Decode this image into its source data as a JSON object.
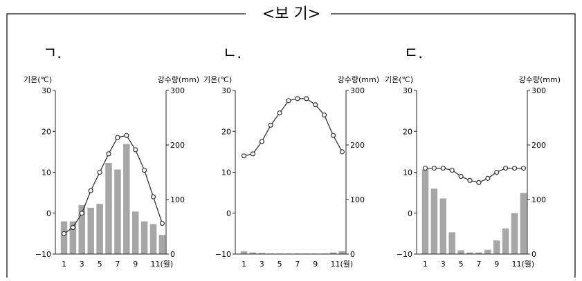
{
  "box_title": "<보 기>",
  "colors": {
    "bar": "#a6a6a6",
    "line": "#333333",
    "axis": "#222222",
    "frame": "#111111"
  },
  "chart_data": [
    {
      "label": "ㄱ.",
      "type": "bar+line",
      "ylabel_left": "기온(℃)",
      "ylabel_right": "강수량(mm)",
      "ylim_left": [
        -10,
        30
      ],
      "ylim_right": [
        0,
        300
      ],
      "yticks_left": [
        "30",
        "20",
        "10",
        "0",
        "−10"
      ],
      "yticks_right": [
        "300",
        "200",
        "100",
        "0"
      ],
      "months": [
        1,
        2,
        3,
        4,
        5,
        6,
        7,
        8,
        9,
        10,
        11,
        12
      ],
      "xtick_labels": [
        "1",
        "3",
        "5",
        "7",
        "9",
        "11(월)"
      ],
      "temperature": [
        -5,
        -3.5,
        0,
        5.5,
        10,
        14.5,
        18.5,
        19,
        15.5,
        10.5,
        4,
        -2.5
      ],
      "precipitation": [
        60,
        60,
        90,
        85,
        92,
        167,
        155,
        202,
        78,
        60,
        55,
        35
      ]
    },
    {
      "label": "ㄴ.",
      "type": "bar+line",
      "ylabel_left": "기온(℃)",
      "ylabel_right": "강수량(mm)",
      "ylim_left": [
        -10,
        30
      ],
      "ylim_right": [
        0,
        300
      ],
      "yticks_left": [
        "30",
        "20",
        "10",
        "0",
        "−10"
      ],
      "yticks_right": [
        "300",
        "200",
        "100",
        "0"
      ],
      "months": [
        1,
        2,
        3,
        4,
        5,
        6,
        7,
        8,
        9,
        10,
        11,
        12
      ],
      "xtick_labels": [
        "1",
        "3",
        "5",
        "7",
        "9",
        "11(월)"
      ],
      "temperature": [
        14,
        14.5,
        17.5,
        21.5,
        24.5,
        27.5,
        28,
        28,
        26.5,
        24,
        19,
        15
      ],
      "precipitation": [
        5,
        3,
        2,
        1,
        1,
        1,
        1,
        1,
        1,
        1,
        3,
        5
      ]
    },
    {
      "label": "ㄷ.",
      "type": "bar+line",
      "ylabel_left": "기온(℃)",
      "ylabel_right": "강수량(mm)",
      "ylim_left": [
        -10,
        30
      ],
      "ylim_right": [
        0,
        300
      ],
      "yticks_left": [
        "30",
        "20",
        "10",
        "0",
        "−10"
      ],
      "yticks_right": [
        "300",
        "200",
        "100",
        "0"
      ],
      "months": [
        1,
        2,
        3,
        4,
        5,
        6,
        7,
        8,
        9,
        10,
        11,
        12
      ],
      "xtick_labels": [
        "1",
        "3",
        "5",
        "7",
        "9",
        "11(월)"
      ],
      "temperature": [
        11,
        11,
        11,
        10.5,
        9,
        8,
        7.5,
        8.5,
        10,
        11,
        11,
        11
      ],
      "precipitation": [
        155,
        120,
        102,
        40,
        7,
        3,
        3,
        8,
        25,
        47,
        75,
        112
      ]
    }
  ]
}
